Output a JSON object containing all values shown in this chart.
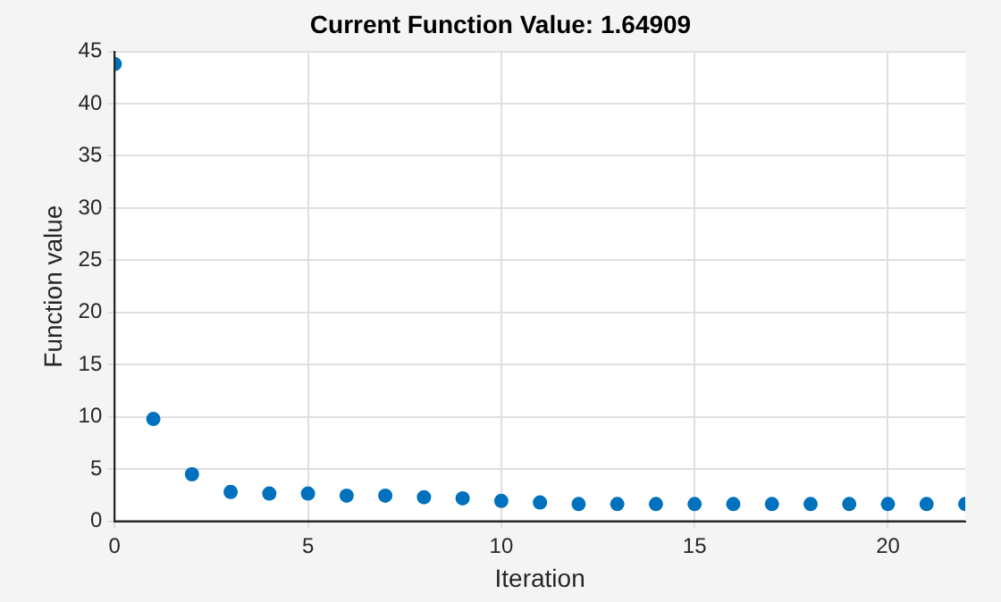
{
  "chart_data": {
    "type": "scatter",
    "title": "Current Function Value: 1.64909",
    "xlabel": "Iteration",
    "ylabel": "Function value",
    "x": [
      0,
      1,
      2,
      3,
      4,
      5,
      6,
      7,
      8,
      9,
      10,
      11,
      12,
      13,
      14,
      15,
      16,
      17,
      18,
      19,
      20,
      21,
      22
    ],
    "series": [
      {
        "color": "#0072bd",
        "values": [
          43.8,
          9.8,
          4.5,
          2.8,
          2.65,
          2.65,
          2.45,
          2.45,
          2.3,
          2.2,
          1.95,
          1.8,
          1.65,
          1.65,
          1.65,
          1.65,
          1.65,
          1.65,
          1.65,
          1.65,
          1.65,
          1.65,
          1.65
        ]
      }
    ],
    "xlim": [
      0,
      22
    ],
    "xticks": [
      0,
      5,
      10,
      15,
      20
    ],
    "ylim": [
      0,
      45
    ],
    "yticks": [
      0,
      5,
      10,
      15,
      20,
      25,
      30,
      35,
      40,
      45
    ],
    "grid": true,
    "marker": "circle"
  }
}
